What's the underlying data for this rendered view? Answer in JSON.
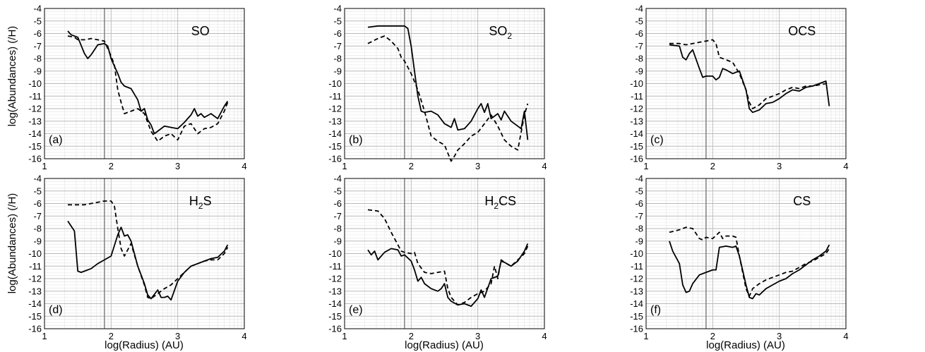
{
  "figure": {
    "ylabel": "log(Abundances) (/H)",
    "xlabel": "log(Radius) (AU)"
  },
  "chart_data": [
    {
      "type": "line",
      "panel": "(a)",
      "species": "SO",
      "xlim": [
        1,
        4
      ],
      "ylim": [
        -16,
        -4
      ],
      "xticks": [
        1,
        2,
        3,
        4
      ],
      "yticks": [
        -4,
        -5,
        -6,
        -7,
        -8,
        -9,
        -10,
        -11,
        -12,
        -13,
        -14,
        -15,
        -16
      ],
      "grid": true,
      "vline_x": 1.9,
      "series": [
        {
          "style": "solid",
          "x": [
            1.35,
            1.4,
            1.5,
            1.6,
            1.65,
            1.7,
            1.8,
            1.9,
            1.95,
            2.0,
            2.05,
            2.1,
            2.15,
            2.2,
            2.3,
            2.4,
            2.45,
            2.5,
            2.55,
            2.6,
            2.65,
            2.7,
            2.8,
            2.9,
            3.0,
            3.1,
            3.2,
            3.25,
            3.3,
            3.35,
            3.4,
            3.5,
            3.6,
            3.7,
            3.75
          ],
          "y": [
            -5.8,
            -6.1,
            -6.3,
            -7.6,
            -8.0,
            -7.7,
            -6.9,
            -6.8,
            -7.0,
            -8.0,
            -8.6,
            -9.2,
            -9.9,
            -10.2,
            -10.4,
            -11.3,
            -12.2,
            -12.0,
            -12.9,
            -13.3,
            -14.0,
            -13.8,
            -13.4,
            -13.5,
            -13.6,
            -13.1,
            -12.5,
            -12.0,
            -12.6,
            -12.4,
            -12.7,
            -12.4,
            -12.8,
            -11.8,
            -11.4
          ]
        },
        {
          "style": "dashed",
          "x": [
            1.35,
            1.45,
            1.5,
            1.6,
            1.7,
            1.8,
            1.9,
            2.0,
            2.05,
            2.1,
            2.15,
            2.2,
            2.3,
            2.4,
            2.5,
            2.6,
            2.7,
            2.8,
            2.9,
            3.0,
            3.1,
            3.2,
            3.3,
            3.4,
            3.5,
            3.6,
            3.7,
            3.75
          ],
          "y": [
            -6.2,
            -6.3,
            -6.5,
            -6.5,
            -6.4,
            -6.5,
            -6.6,
            -7.8,
            -8.5,
            -10.5,
            -11.5,
            -12.4,
            -12.2,
            -12.0,
            -12.4,
            -13.8,
            -14.6,
            -14.2,
            -14.0,
            -14.5,
            -13.4,
            -13.2,
            -14.0,
            -13.6,
            -13.5,
            -13.2,
            -12.2,
            -11.5
          ]
        }
      ]
    },
    {
      "type": "line",
      "panel": "(b)",
      "species": "SO2",
      "xlim": [
        1,
        4
      ],
      "ylim": [
        -16,
        -4
      ],
      "xticks": [
        1,
        2,
        3,
        4
      ],
      "yticks": [
        -4,
        -5,
        -6,
        -7,
        -8,
        -9,
        -10,
        -11,
        -12,
        -13,
        -14,
        -15,
        -16
      ],
      "grid": true,
      "vline_x": 1.9,
      "series": [
        {
          "style": "solid",
          "x": [
            1.35,
            1.5,
            1.7,
            1.9,
            1.95,
            2.0,
            2.05,
            2.1,
            2.15,
            2.2,
            2.3,
            2.4,
            2.5,
            2.6,
            2.65,
            2.7,
            2.8,
            2.9,
            3.0,
            3.05,
            3.1,
            3.15,
            3.2,
            3.3,
            3.35,
            3.4,
            3.5,
            3.6,
            3.65,
            3.7,
            3.75
          ],
          "y": [
            -5.5,
            -5.4,
            -5.4,
            -5.4,
            -5.6,
            -7.0,
            -9.0,
            -11.0,
            -12.2,
            -12.3,
            -12.2,
            -12.5,
            -13.2,
            -13.5,
            -12.8,
            -13.7,
            -13.6,
            -13.0,
            -12.0,
            -11.6,
            -12.3,
            -11.6,
            -12.8,
            -12.4,
            -12.9,
            -12.2,
            -13.0,
            -13.4,
            -13.6,
            -12.2,
            -14.5
          ]
        },
        {
          "style": "dashed",
          "x": [
            1.35,
            1.5,
            1.6,
            1.7,
            1.8,
            1.85,
            1.9,
            2.0,
            2.1,
            2.2,
            2.3,
            2.4,
            2.5,
            2.6,
            2.65,
            2.7,
            2.8,
            2.9,
            3.0,
            3.1,
            3.2,
            3.3,
            3.4,
            3.5,
            3.6,
            3.7,
            3.75
          ],
          "y": [
            -6.8,
            -6.4,
            -6.2,
            -6.6,
            -7.2,
            -7.9,
            -8.2,
            -9.2,
            -10.5,
            -12.2,
            -14.2,
            -14.6,
            -14.9,
            -16.2,
            -15.8,
            -15.3,
            -14.8,
            -14.2,
            -13.9,
            -13.2,
            -12.5,
            -13.4,
            -14.5,
            -15.0,
            -15.3,
            -12.5,
            -11.6
          ]
        }
      ]
    },
    {
      "type": "line",
      "panel": "(c)",
      "species": "OCS",
      "xlim": [
        1,
        4
      ],
      "ylim": [
        -16,
        -4
      ],
      "xticks": [
        1,
        2,
        3,
        4
      ],
      "yticks": [
        -4,
        -5,
        -6,
        -7,
        -8,
        -9,
        -10,
        -11,
        -12,
        -13,
        -14,
        -15,
        -16
      ],
      "grid": true,
      "vline_x": 1.9,
      "series": [
        {
          "style": "solid",
          "x": [
            1.35,
            1.5,
            1.55,
            1.6,
            1.65,
            1.7,
            1.8,
            1.85,
            1.9,
            2.0,
            2.05,
            2.1,
            2.15,
            2.2,
            2.3,
            2.4,
            2.5,
            2.55,
            2.6,
            2.7,
            2.8,
            2.9,
            3.0,
            3.1,
            3.2,
            3.3,
            3.4,
            3.5,
            3.6,
            3.7,
            3.75
          ],
          "y": [
            -6.9,
            -7.0,
            -7.9,
            -8.1,
            -7.6,
            -7.3,
            -8.8,
            -9.5,
            -9.4,
            -9.4,
            -9.7,
            -9.5,
            -8.8,
            -8.9,
            -9.2,
            -9.0,
            -10.5,
            -12.0,
            -12.3,
            -12.1,
            -11.6,
            -11.5,
            -11.2,
            -10.8,
            -10.5,
            -10.6,
            -10.3,
            -10.2,
            -10.0,
            -9.8,
            -11.8
          ]
        },
        {
          "style": "dashed",
          "x": [
            1.35,
            1.5,
            1.6,
            1.7,
            1.8,
            1.9,
            2.0,
            2.05,
            2.1,
            2.2,
            2.3,
            2.4,
            2.5,
            2.55,
            2.6,
            2.7,
            2.8,
            2.9,
            3.0,
            3.1,
            3.2,
            3.3,
            3.4,
            3.5,
            3.6,
            3.7,
            3.75
          ],
          "y": [
            -6.8,
            -6.8,
            -6.9,
            -6.8,
            -6.7,
            -6.6,
            -6.5,
            -6.8,
            -7.9,
            -8.1,
            -8.3,
            -9.2,
            -10.5,
            -11.5,
            -12.0,
            -11.7,
            -11.2,
            -11.0,
            -10.8,
            -10.5,
            -10.3,
            -10.4,
            -10.2,
            -10.2,
            -10.1,
            -10.0,
            -10.1
          ]
        }
      ]
    },
    {
      "type": "line",
      "panel": "(d)",
      "species": "H2S",
      "xlim": [
        1,
        4
      ],
      "ylim": [
        -16,
        -4
      ],
      "xticks": [
        1,
        2,
        3,
        4
      ],
      "yticks": [
        -4,
        -5,
        -6,
        -7,
        -8,
        -9,
        -10,
        -11,
        -12,
        -13,
        -14,
        -15,
        -16
      ],
      "grid": true,
      "vline_x": 1.9,
      "series": [
        {
          "style": "solid",
          "x": [
            1.35,
            1.45,
            1.5,
            1.55,
            1.6,
            1.7,
            1.8,
            1.9,
            2.0,
            2.1,
            2.15,
            2.2,
            2.25,
            2.3,
            2.4,
            2.5,
            2.55,
            2.6,
            2.7,
            2.75,
            2.8,
            2.85,
            2.9,
            3.0,
            3.1,
            3.2,
            3.3,
            3.4,
            3.5,
            3.6,
            3.7,
            3.75
          ],
          "y": [
            -7.4,
            -8.2,
            -11.4,
            -11.5,
            -11.4,
            -11.2,
            -10.8,
            -10.5,
            -10.2,
            -8.5,
            -7.9,
            -8.6,
            -8.5,
            -9.0,
            -11.0,
            -12.4,
            -13.3,
            -13.6,
            -12.9,
            -13.5,
            -13.5,
            -13.4,
            -13.7,
            -12.2,
            -11.5,
            -11.0,
            -10.8,
            -10.6,
            -10.4,
            -10.3,
            -9.8,
            -9.3
          ]
        },
        {
          "style": "dashed",
          "x": [
            1.35,
            1.5,
            1.6,
            1.7,
            1.8,
            1.9,
            2.0,
            2.05,
            2.1,
            2.15,
            2.2,
            2.3,
            2.4,
            2.5,
            2.55,
            2.6,
            2.7,
            2.8,
            2.9,
            3.0,
            3.1,
            3.2,
            3.3,
            3.4,
            3.5,
            3.6,
            3.7,
            3.75
          ],
          "y": [
            -6.1,
            -6.1,
            -6.1,
            -6.0,
            -5.9,
            -5.8,
            -5.8,
            -6.2,
            -8.0,
            -9.6,
            -10.2,
            -9.2,
            -11.0,
            -12.5,
            -13.5,
            -13.6,
            -13.2,
            -12.8,
            -12.5,
            -12.0,
            -11.5,
            -11.0,
            -10.8,
            -10.6,
            -10.5,
            -10.5,
            -10.0,
            -9.5
          ]
        }
      ]
    },
    {
      "type": "line",
      "panel": "(e)",
      "species": "H2CS",
      "xlim": [
        1,
        4
      ],
      "ylim": [
        -16,
        -4
      ],
      "xticks": [
        1,
        2,
        3,
        4
      ],
      "yticks": [
        -4,
        -5,
        -6,
        -7,
        -8,
        -9,
        -10,
        -11,
        -12,
        -13,
        -14,
        -15,
        -16
      ],
      "grid": true,
      "vline_x": 1.9,
      "series": [
        {
          "style": "solid",
          "x": [
            1.35,
            1.4,
            1.45,
            1.5,
            1.6,
            1.7,
            1.8,
            1.85,
            1.9,
            2.0,
            2.05,
            2.1,
            2.15,
            2.2,
            2.3,
            2.4,
            2.45,
            2.5,
            2.55,
            2.6,
            2.7,
            2.8,
            2.9,
            3.0,
            3.05,
            3.1,
            3.2,
            3.3,
            3.35,
            3.4,
            3.5,
            3.6,
            3.7,
            3.75
          ],
          "y": [
            -9.7,
            -10.1,
            -9.8,
            -10.5,
            -9.9,
            -9.6,
            -9.7,
            -10.2,
            -10.1,
            -10.6,
            -11.3,
            -12.2,
            -11.9,
            -12.4,
            -12.8,
            -13.0,
            -12.8,
            -12.4,
            -13.5,
            -13.8,
            -14.1,
            -14.0,
            -14.2,
            -13.6,
            -12.9,
            -13.5,
            -12.0,
            -11.8,
            -10.6,
            -10.7,
            -11.0,
            -10.6,
            -9.8,
            -9.2
          ]
        },
        {
          "style": "dashed",
          "x": [
            1.35,
            1.5,
            1.6,
            1.7,
            1.8,
            1.85,
            1.9,
            2.0,
            2.05,
            2.1,
            2.2,
            2.3,
            2.4,
            2.5,
            2.55,
            2.6,
            2.7,
            2.8,
            2.9,
            3.0,
            3.1,
            3.2,
            3.25,
            3.3,
            3.35,
            3.4,
            3.5,
            3.6,
            3.7,
            3.75
          ],
          "y": [
            -6.5,
            -6.6,
            -7.2,
            -8.3,
            -9.3,
            -9.8,
            -9.9,
            -10.0,
            -9.9,
            -10.8,
            -11.5,
            -11.6,
            -11.5,
            -11.4,
            -12.8,
            -13.5,
            -14.1,
            -13.9,
            -13.5,
            -13.2,
            -13.0,
            -12.4,
            -11.0,
            -12.0,
            -10.5,
            -10.7,
            -11.0,
            -10.5,
            -10.0,
            -9.4
          ]
        }
      ]
    },
    {
      "type": "line",
      "panel": "(f)",
      "species": "CS",
      "xlim": [
        1,
        4
      ],
      "ylim": [
        -16,
        -4
      ],
      "xticks": [
        1,
        2,
        3,
        4
      ],
      "yticks": [
        -4,
        -5,
        -6,
        -7,
        -8,
        -9,
        -10,
        -11,
        -12,
        -13,
        -14,
        -15,
        -16
      ],
      "grid": true,
      "vline_x": 1.9,
      "series": [
        {
          "style": "solid",
          "x": [
            1.35,
            1.4,
            1.5,
            1.55,
            1.6,
            1.65,
            1.7,
            1.8,
            1.9,
            2.0,
            2.05,
            2.1,
            2.2,
            2.3,
            2.35,
            2.4,
            2.5,
            2.55,
            2.6,
            2.65,
            2.7,
            2.8,
            2.9,
            3.0,
            3.1,
            3.2,
            3.3,
            3.4,
            3.5,
            3.6,
            3.7,
            3.75
          ],
          "y": [
            -9.0,
            -9.8,
            -10.8,
            -12.5,
            -13.1,
            -13.0,
            -12.4,
            -11.7,
            -11.5,
            -11.3,
            -11.3,
            -9.5,
            -9.4,
            -9.5,
            -9.4,
            -10.2,
            -12.5,
            -13.5,
            -13.6,
            -13.2,
            -13.3,
            -12.8,
            -12.5,
            -12.2,
            -12.0,
            -11.6,
            -11.3,
            -10.9,
            -10.5,
            -10.2,
            -9.8,
            -9.3
          ]
        },
        {
          "style": "dashed",
          "x": [
            1.35,
            1.5,
            1.6,
            1.7,
            1.75,
            1.8,
            1.85,
            1.9,
            2.0,
            2.1,
            2.15,
            2.2,
            2.3,
            2.35,
            2.4,
            2.5,
            2.55,
            2.6,
            2.7,
            2.8,
            2.9,
            3.0,
            3.1,
            3.2,
            3.3,
            3.4,
            3.5,
            3.6,
            3.7,
            3.75
          ],
          "y": [
            -8.3,
            -8.1,
            -7.9,
            -8.0,
            -8.4,
            -8.8,
            -8.9,
            -8.7,
            -8.8,
            -8.3,
            -8.8,
            -8.6,
            -8.6,
            -8.7,
            -10.2,
            -12.8,
            -13.4,
            -12.8,
            -12.4,
            -12.1,
            -11.9,
            -11.7,
            -11.5,
            -11.4,
            -11.1,
            -10.8,
            -10.6,
            -10.3,
            -10.0,
            -9.6
          ]
        }
      ]
    }
  ]
}
